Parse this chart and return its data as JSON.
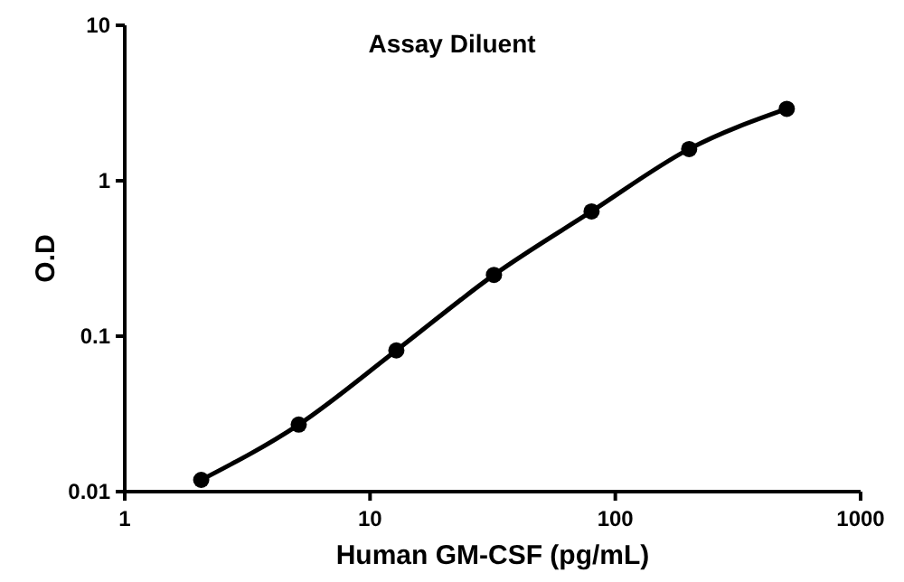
{
  "chart_data": {
    "type": "line",
    "title": "Assay Diluent",
    "xlabel": "Human GM-CSF (pg/mL)",
    "ylabel": "O.D",
    "log": "xy",
    "marker": "circle",
    "line_style": "solid",
    "grid": false,
    "x": [
      2.05,
      5.12,
      12.8,
      32,
      80,
      200,
      500
    ],
    "series": [
      {
        "color": "#000000",
        "values": [
          0.0119,
          0.027,
          0.081,
          0.248,
          0.635,
          1.6,
          2.9
        ]
      }
    ],
    "xlim": [
      1,
      1000
    ],
    "xticks": [
      1,
      10,
      100,
      1000
    ],
    "ylim": [
      0.01,
      10
    ],
    "yticks": [
      0.01,
      0.1,
      1,
      10
    ]
  }
}
